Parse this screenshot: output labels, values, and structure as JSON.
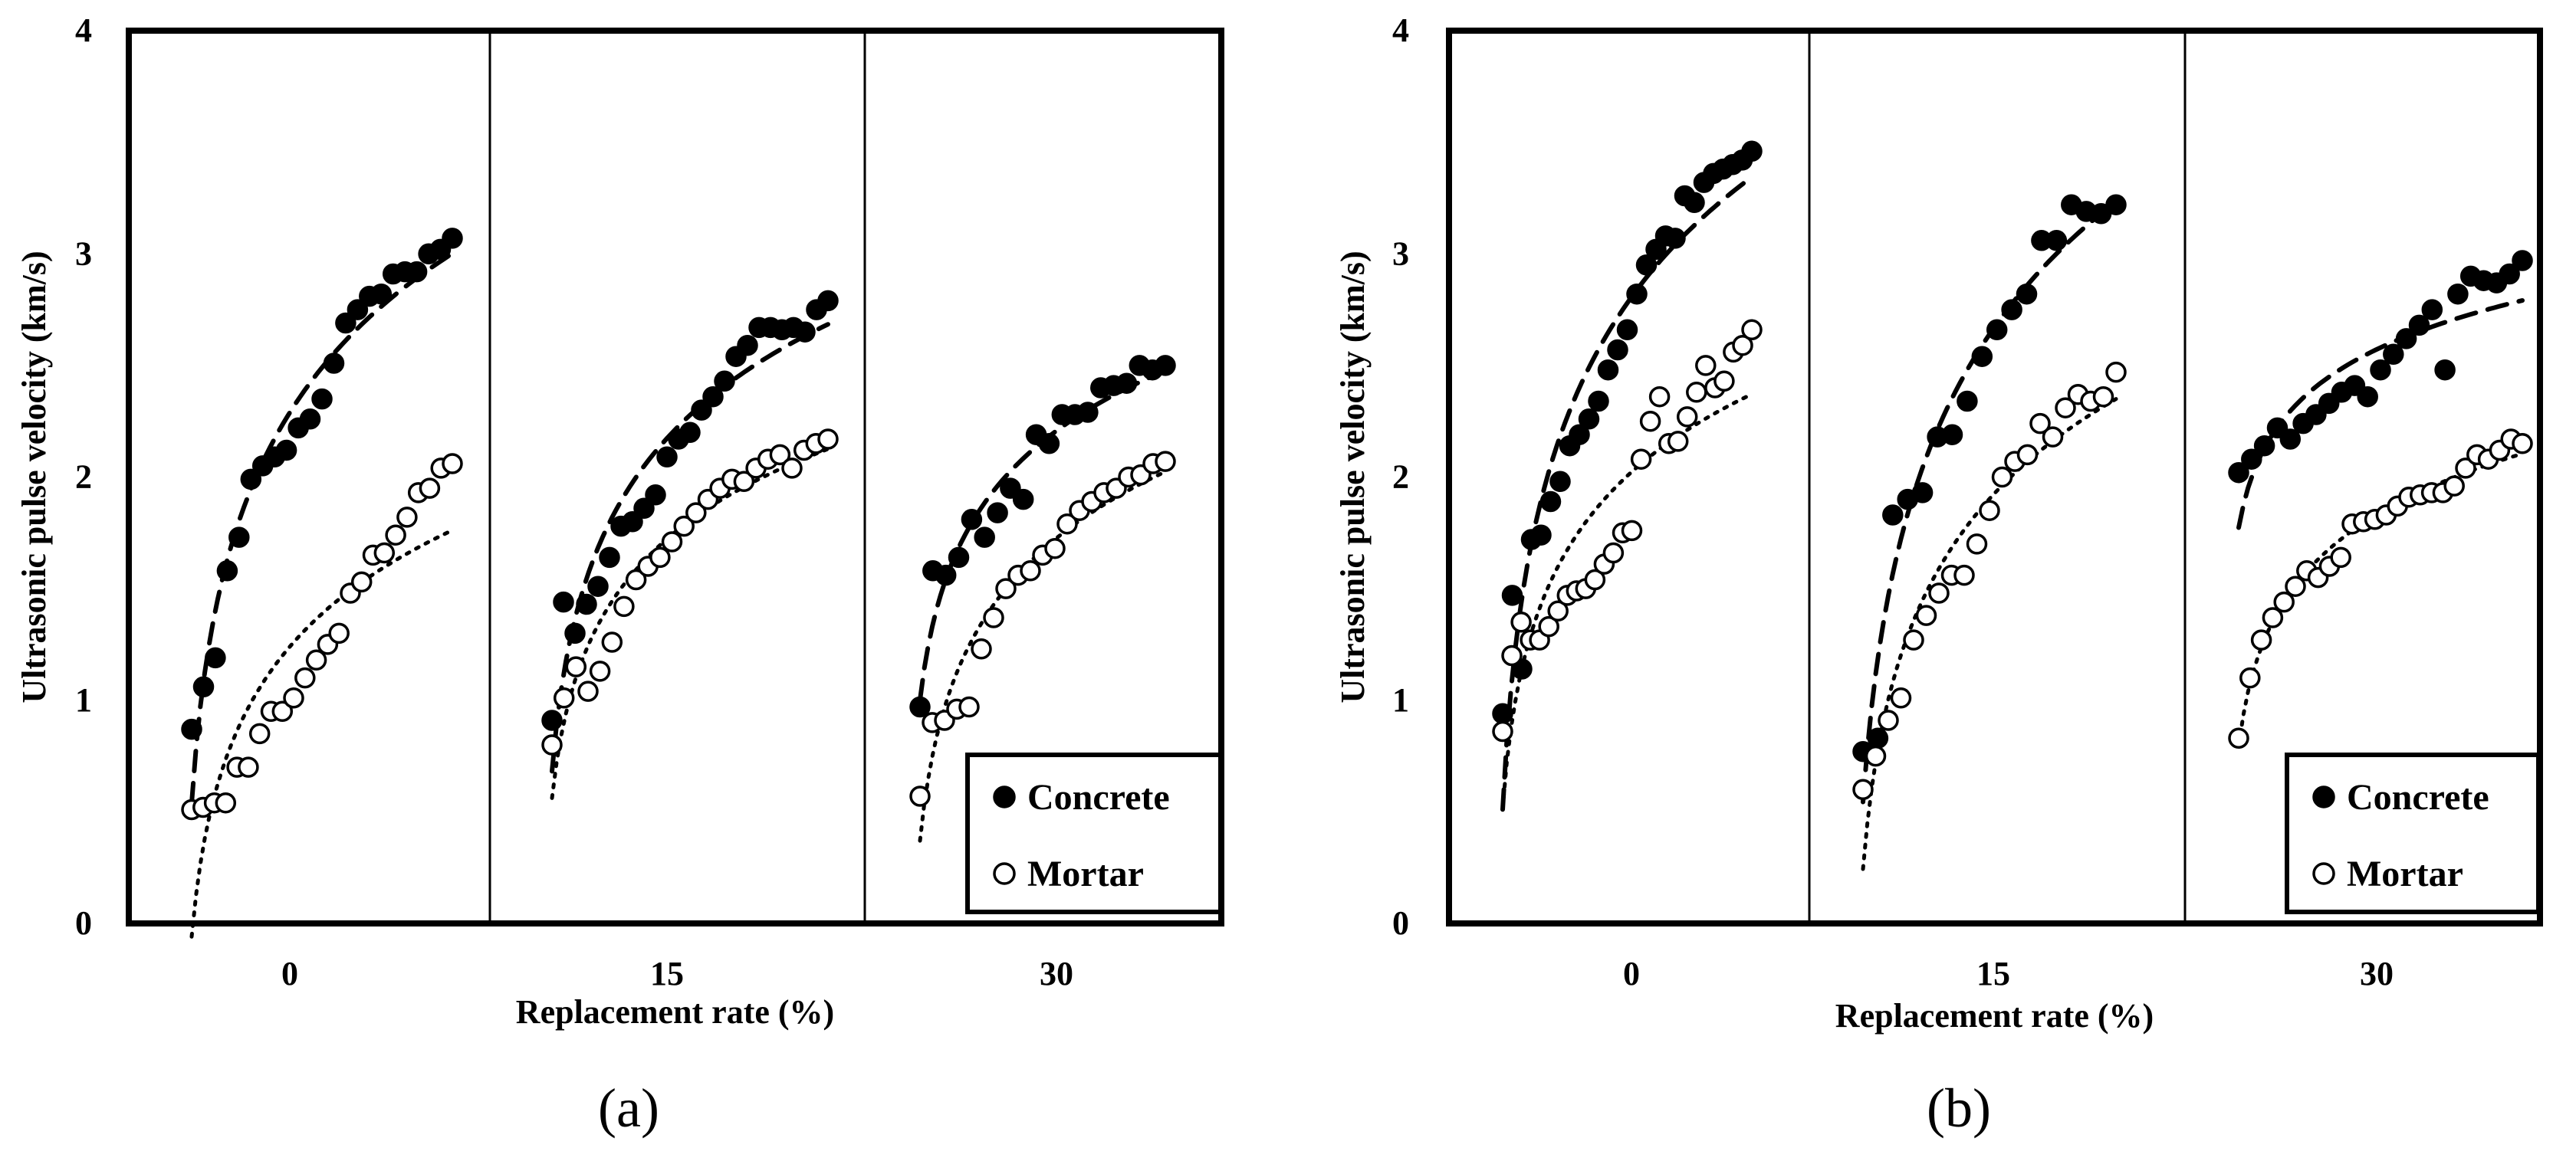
{
  "chart_data": [
    {
      "type": "scatter",
      "panel_label": "(a)",
      "xlabel": "Replacement rate (%)",
      "ylabel": "Ultrasonic pulse velocity (km/s)",
      "ylim": [
        0,
        4
      ],
      "yticks": [
        "0",
        "1",
        "2",
        "3",
        "4"
      ],
      "group_labels": [
        "0",
        "15",
        "30"
      ],
      "legend": {
        "position": "bottom-right",
        "entries": [
          "Concrete",
          "Mortar"
        ]
      },
      "series": [
        {
          "name": "Concrete",
          "marker": "filled-circle",
          "trend": "dashed",
          "groups": [
            [
              0.87,
              1.06,
              1.19,
              1.58,
              1.73,
              1.99,
              2.05,
              2.09,
              2.12,
              2.22,
              2.26,
              2.35,
              2.51,
              2.69,
              2.75,
              2.81,
              2.82,
              2.91,
              2.92,
              2.92,
              3.0,
              3.02,
              3.07
            ],
            [
              0.91,
              1.44,
              1.3,
              1.43,
              1.51,
              1.64,
              1.78,
              1.8,
              1.86,
              1.92,
              2.09,
              2.17,
              2.2,
              2.3,
              2.36,
              2.43,
              2.54,
              2.59,
              2.67,
              2.67,
              2.66,
              2.67,
              2.65,
              2.75,
              2.79
            ],
            [
              0.97,
              1.58,
              1.56,
              1.64,
              1.81,
              1.73,
              1.84,
              1.95,
              1.9,
              2.19,
              2.15,
              2.28,
              2.28,
              2.29,
              2.4,
              2.41,
              2.42,
              2.5,
              2.48,
              2.5
            ]
          ]
        },
        {
          "name": "Mortar",
          "marker": "open-circle",
          "trend": "dotted",
          "groups": [
            [
              0.51,
              0.52,
              0.54,
              0.54,
              0.7,
              0.7,
              0.85,
              0.95,
              0.95,
              1.01,
              1.1,
              1.18,
              1.25,
              1.3,
              1.48,
              1.53,
              1.65,
              1.66,
              1.74,
              1.82,
              1.93,
              1.95,
              2.04,
              2.06
            ],
            [
              0.8,
              1.01,
              1.15,
              1.04,
              1.13,
              1.26,
              1.42,
              1.54,
              1.6,
              1.64,
              1.71,
              1.78,
              1.84,
              1.9,
              1.95,
              1.99,
              1.98,
              2.04,
              2.08,
              2.1,
              2.04,
              2.12,
              2.15,
              2.17
            ],
            [
              0.57,
              0.9,
              0.91,
              0.96,
              0.97,
              1.23,
              1.37,
              1.5,
              1.56,
              1.58,
              1.65,
              1.68,
              1.79,
              1.85,
              1.89,
              1.93,
              1.95,
              2.0,
              2.01,
              2.06,
              2.07
            ]
          ]
        }
      ]
    },
    {
      "type": "scatter",
      "panel_label": "(b)",
      "xlabel": "Replacement rate (%)",
      "ylabel": "Ultrasonic pulse velocity (km/s)",
      "ylim": [
        0,
        4
      ],
      "yticks": [
        "0",
        "1",
        "2",
        "3",
        "4"
      ],
      "group_labels": [
        "0",
        "15",
        "30"
      ],
      "legend": {
        "position": "bottom-right",
        "entries": [
          "Concrete",
          "Mortar"
        ]
      },
      "series": [
        {
          "name": "Concrete",
          "marker": "filled-circle",
          "trend": "dashed",
          "groups": [
            [
              0.94,
              1.47,
              1.14,
              1.72,
              1.74,
              1.89,
              1.98,
              2.14,
              2.19,
              2.26,
              2.34,
              2.48,
              2.57,
              2.66,
              2.82,
              2.95,
              3.02,
              3.08,
              3.07,
              3.26,
              3.23,
              3.32,
              3.36,
              3.38,
              3.4,
              3.42,
              3.46
            ],
            [
              0.77,
              0.83,
              1.83,
              1.9,
              1.93,
              2.18,
              2.19,
              2.34,
              2.54,
              2.66,
              2.75,
              2.82,
              3.06,
              3.06,
              3.22,
              3.19,
              3.18,
              3.22
            ],
            [
              2.02,
              2.08,
              2.14,
              2.22,
              2.17,
              2.24,
              2.28,
              2.33,
              2.38,
              2.41,
              2.36,
              2.48,
              2.55,
              2.62,
              2.68,
              2.75,
              2.48,
              2.82,
              2.9,
              2.88,
              2.87,
              2.91,
              2.97
            ]
          ]
        },
        {
          "name": "Mortar",
          "marker": "open-circle",
          "trend": "dotted",
          "groups": [
            [
              0.86,
              1.2,
              1.35,
              1.27,
              1.27,
              1.33,
              1.4,
              1.47,
              1.49,
              1.5,
              1.54,
              1.61,
              1.66,
              1.75,
              1.76,
              2.08,
              2.25,
              2.36,
              2.15,
              2.16,
              2.27,
              2.38,
              2.5,
              2.4,
              2.43,
              2.56,
              2.59,
              2.66
            ],
            [
              0.6,
              0.75,
              0.91,
              1.01,
              1.27,
              1.38,
              1.48,
              1.56,
              1.56,
              1.7,
              1.85,
              2.0,
              2.07,
              2.1,
              2.24,
              2.18,
              2.31,
              2.37,
              2.34,
              2.36,
              2.47
            ],
            [
              0.83,
              1.1,
              1.27,
              1.37,
              1.44,
              1.51,
              1.58,
              1.55,
              1.6,
              1.64,
              1.79,
              1.8,
              1.81,
              1.83,
              1.87,
              1.91,
              1.92,
              1.93,
              1.93,
              1.96,
              2.04,
              2.1,
              2.08,
              2.12,
              2.17,
              2.15
            ]
          ]
        }
      ]
    }
  ]
}
